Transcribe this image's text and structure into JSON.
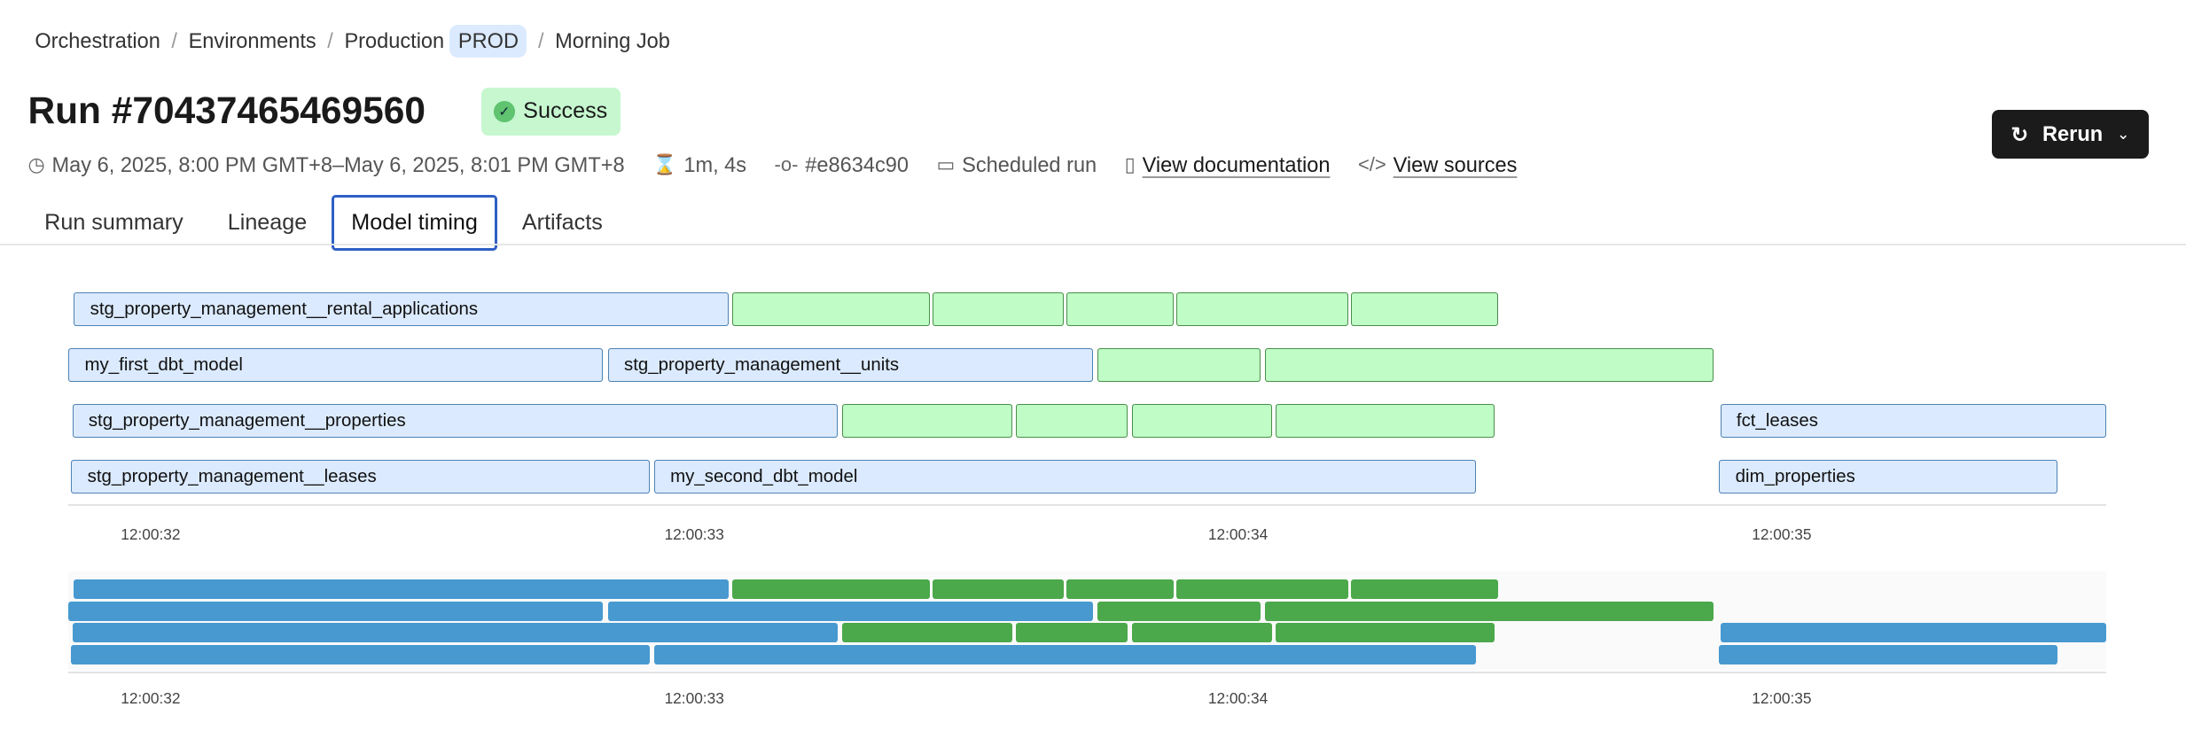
{
  "breadcrumb": {
    "items": [
      "Orchestration",
      "Environments",
      "Production"
    ],
    "env_badge": "PROD",
    "current": "Morning Job"
  },
  "header": {
    "title": "Run #70437465469560",
    "status": "Success",
    "status_color": "#c6f7cf",
    "time_range": "May 6, 2025, 8:00 PM GMT+8–May 6, 2025, 8:01 PM GMT+8",
    "duration": "1m, 4s",
    "commit": "#e8634c90",
    "trigger": "Scheduled run",
    "docs_link": "View documentation",
    "sources_link": "View sources",
    "rerun_label": "Rerun"
  },
  "tabs": [
    {
      "label": "Run summary"
    },
    {
      "label": "Lineage"
    },
    {
      "label": "Model timing",
      "active": true
    },
    {
      "label": "Artifacts"
    }
  ],
  "chart_data": {
    "type": "gantt",
    "x_unit": "seconds past 12:00",
    "xlim": [
      31.846,
      35.6
    ],
    "ticks": [
      {
        "value": 32,
        "label": "12:00:32"
      },
      {
        "value": 33,
        "label": "12:00:33"
      },
      {
        "value": 34,
        "label": "12:00:34"
      },
      {
        "value": 35,
        "label": "12:00:35"
      }
    ],
    "colors": {
      "model_fill": "#dbeafe",
      "model_border": "#4d82b3",
      "test_fill": "#bffcc6",
      "test_border": "#4a8f4a",
      "mini_model": "#4799d0",
      "mini_test": "#4ba84b"
    },
    "rows": [
      [
        {
          "name": "stg_property_management__rental_applications",
          "kind": "model",
          "start": 31.859,
          "end": 33.064
        },
        {
          "name": "",
          "kind": "test",
          "start": 33.069,
          "end": 33.433
        },
        {
          "name": "",
          "kind": "test",
          "start": 33.438,
          "end": 33.679
        },
        {
          "name": "",
          "kind": "test",
          "start": 33.685,
          "end": 33.882
        },
        {
          "name": "",
          "kind": "test",
          "start": 33.887,
          "end": 34.203
        },
        {
          "name": "",
          "kind": "test",
          "start": 34.208,
          "end": 34.479
        }
      ],
      [
        {
          "name": "my_first_dbt_model",
          "kind": "model",
          "start": 31.849,
          "end": 32.831
        },
        {
          "name": "stg_property_management__units",
          "kind": "model",
          "start": 32.841,
          "end": 33.733
        },
        {
          "name": "",
          "kind": "test",
          "start": 33.741,
          "end": 34.041
        },
        {
          "name": "",
          "kind": "test",
          "start": 34.049,
          "end": 34.874
        }
      ],
      [
        {
          "name": "stg_property_management__properties",
          "kind": "model",
          "start": 31.856,
          "end": 33.264
        },
        {
          "name": "",
          "kind": "test",
          "start": 33.272,
          "end": 33.585
        },
        {
          "name": "",
          "kind": "test",
          "start": 33.592,
          "end": 33.797
        },
        {
          "name": "",
          "kind": "test",
          "start": 33.805,
          "end": 34.062
        },
        {
          "name": "",
          "kind": "test",
          "start": 34.069,
          "end": 34.472
        },
        {
          "name": "fct_leases",
          "kind": "model",
          "start": 34.887,
          "end": 35.597
        }
      ],
      [
        {
          "name": "stg_property_management__leases",
          "kind": "model",
          "start": 31.854,
          "end": 32.918
        },
        {
          "name": "my_second_dbt_model",
          "kind": "model",
          "start": 32.926,
          "end": 34.438
        },
        {
          "name": "dim_properties",
          "kind": "model",
          "start": 34.885,
          "end": 35.508
        }
      ]
    ]
  }
}
